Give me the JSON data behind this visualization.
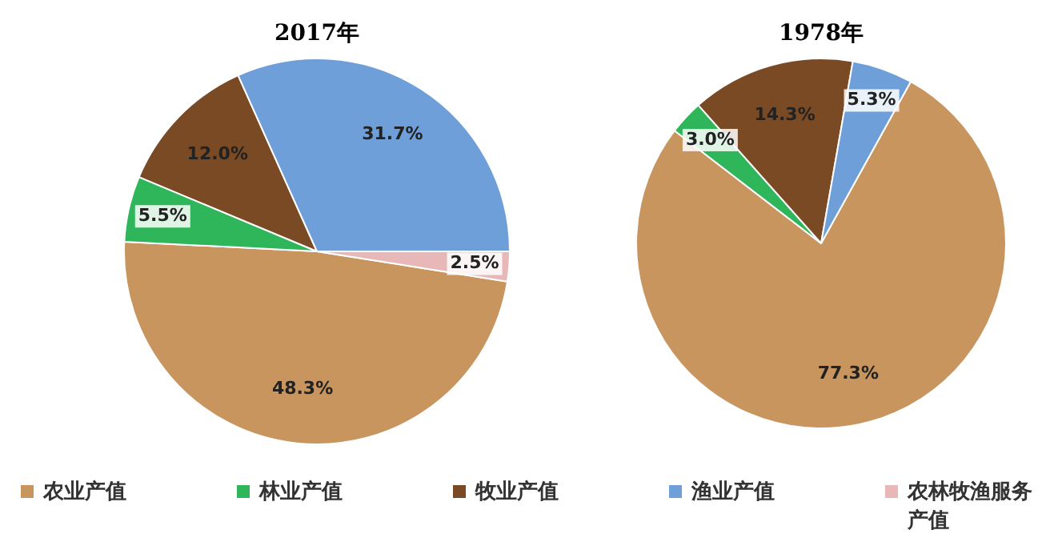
{
  "chart_data": [
    {
      "type": "pie",
      "title": "2017年",
      "categories": [
        "农业产值",
        "林业产值",
        "牧业产值",
        "渔业产值",
        "农林牧渔服务产值"
      ],
      "values": [
        48.3,
        5.5,
        12.0,
        31.7,
        2.5
      ],
      "colors": [
        "#c8955f",
        "#2fb55a",
        "#7a4a25",
        "#6f9fd8",
        "#e8b8b8"
      ],
      "value_labels": [
        "48.3%",
        "5.5%",
        "12.0%",
        "31.7%",
        "2.5%"
      ],
      "legend": "bottom"
    },
    {
      "type": "pie",
      "title": "1978年",
      "categories": [
        null,
        null,
        null,
        null,
        null
      ],
      "values": [
        77.3,
        3.0,
        14.3,
        5.3,
        null
      ],
      "colors": [
        "#c8955f",
        "#2fb55a",
        "#7a4a25",
        "#6f9fd8",
        "#e8b8b8"
      ],
      "value_labels": [
        "77.3%",
        "3.0%",
        "14.3%",
        "5.3%",
        null
      ]
    }
  ]
}
